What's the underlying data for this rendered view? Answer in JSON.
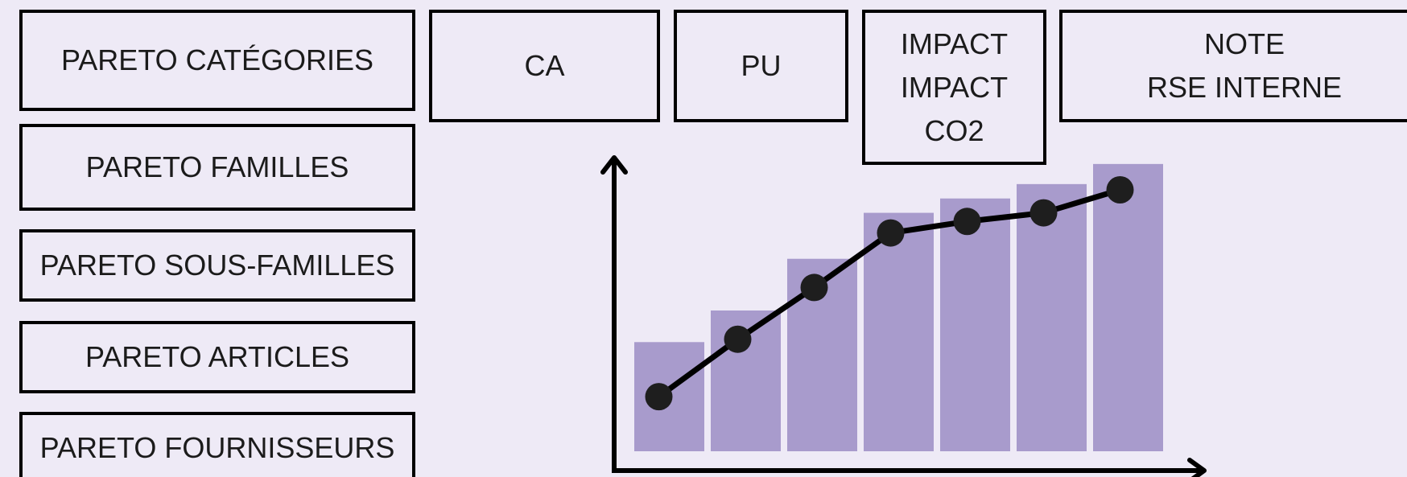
{
  "left_menu": {
    "items": [
      {
        "lines": [
          "PARETO CATÉGORIES"
        ]
      },
      {
        "lines": [
          "PARETO FAMILLES"
        ]
      },
      {
        "lines": [
          "PARETO SOUS-FAMILLES"
        ]
      },
      {
        "lines": [
          "PARETO ARTICLES"
        ]
      },
      {
        "lines": [
          "PARETO FOURNISSEURS"
        ]
      }
    ]
  },
  "metrics": {
    "ca": {
      "lines": [
        "CA"
      ]
    },
    "pu": {
      "lines": [
        "PU"
      ]
    },
    "impact": {
      "lines": [
        "IMPACT",
        "IMPACT",
        "CO2"
      ]
    },
    "note": {
      "lines": [
        "NOTE",
        "RSE INTERNE"
      ]
    }
  },
  "chart_data": {
    "type": "bar",
    "series": [
      {
        "values": [
          38,
          49,
          67,
          83,
          88,
          93,
          100
        ]
      },
      {
        "values": [
          19,
          39,
          57,
          76,
          80,
          83,
          91
        ]
      }
    ],
    "ylim": [
      0,
      105
    ],
    "grid": false,
    "colors": {
      "bars": "#a89bcc",
      "line": "#000000",
      "markers": "#1e1e1e"
    }
  }
}
